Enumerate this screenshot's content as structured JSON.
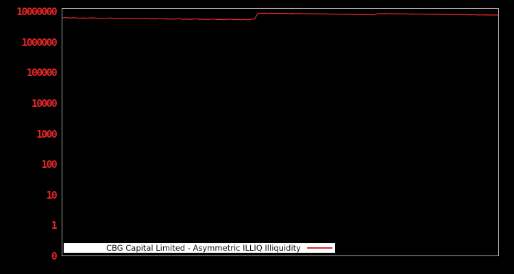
{
  "chart_data": {
    "type": "line",
    "title": "",
    "legend_label": "CBG Capital Limited - Asymmetric ILLIQ Illiquidity",
    "legend_position": "bottom-left-inside",
    "background_color": "#000000",
    "axis_border_color": "#b3b3b3",
    "tick_label_color": "#e02626",
    "legend_box_color": "#ffffff",
    "legend_text_color": "#111111",
    "y_axis": {
      "scale": "log-with-zero",
      "tick_labels": [
        "10000000",
        "1000000",
        "100000",
        "10000",
        "1000",
        "100",
        "10",
        "1",
        "0"
      ],
      "ylim": [
        0,
        10000000
      ],
      "grid": false
    },
    "x_axis": {
      "tick_labels": [],
      "grid": false
    },
    "series": [
      {
        "name": "CBG Capital Limited - Asymmetric ILLIQ Illiquidity",
        "color": "#e02626",
        "values": [
          6280000.0,
          6450000.0,
          6180000.0,
          6320000.0,
          6250000.0,
          6100000.0,
          6220000.0,
          6050000.0,
          6180000.0,
          6300000.0,
          6020000.0,
          6120000.0,
          5980000.0,
          6080000.0,
          6200000.0,
          5950000.0,
          6050000.0,
          5900000.0,
          6000000.0,
          6150000.0,
          5880000.0,
          5950000.0,
          5820000.0,
          5920000.0,
          6050000.0,
          5800000.0,
          5880000.0,
          5750000.0,
          5850000.0,
          5980000.0,
          5720000.0,
          5800000.0,
          5700000.0,
          5780000.0,
          5900000.0,
          5680000.0,
          5750000.0,
          5620000.0,
          5720000.0,
          5850000.0,
          5600000.0,
          5680000.0,
          5550000.0,
          5650000.0,
          5780000.0,
          5550000.0,
          5620000.0,
          5500000.0,
          5580000.0,
          5700000.0,
          5480000.0,
          5550000.0,
          5450000.0,
          5520000.0,
          5420000.0,
          5700000.0,
          5750000.0,
          8850000.0,
          8800000.0,
          8900000.0,
          8750000.0,
          8850000.0,
          8700000.0,
          8800000.0,
          8650000.0,
          8750000.0,
          8600000.0,
          8720000.0,
          8550000.0,
          8680000.0,
          8500000.0,
          8620000.0,
          8450000.0,
          8580000.0,
          8400000.0,
          8520000.0,
          8350000.0,
          8450000.0,
          8280000.0,
          8400000.0,
          8220000.0,
          8320000.0,
          8150000.0,
          8250000.0,
          8080000.0,
          8180000.0,
          8000000.0,
          8100000.0,
          7950000.0,
          8050000.0,
          7900000.0,
          7920000.0,
          8600000.0,
          8550000.0,
          8650000.0,
          8500000.0,
          8600000.0,
          8450000.0,
          8550000.0,
          8400000.0,
          8500000.0,
          8350000.0,
          8450000.0,
          8300000.0,
          8400000.0,
          8250000.0,
          8350000.0,
          8200000.0,
          8280000.0,
          8120000.0,
          8220000.0,
          8050000.0,
          8150000.0,
          8000000.0,
          8100000.0,
          7950000.0,
          8050000.0,
          7900000.0,
          8000000.0,
          7850000.0,
          7950000.0,
          7800000.0,
          7900000.0,
          7780000.0,
          7850000.0,
          7720000.0,
          7800000.0,
          7700000.0
        ]
      }
    ]
  }
}
